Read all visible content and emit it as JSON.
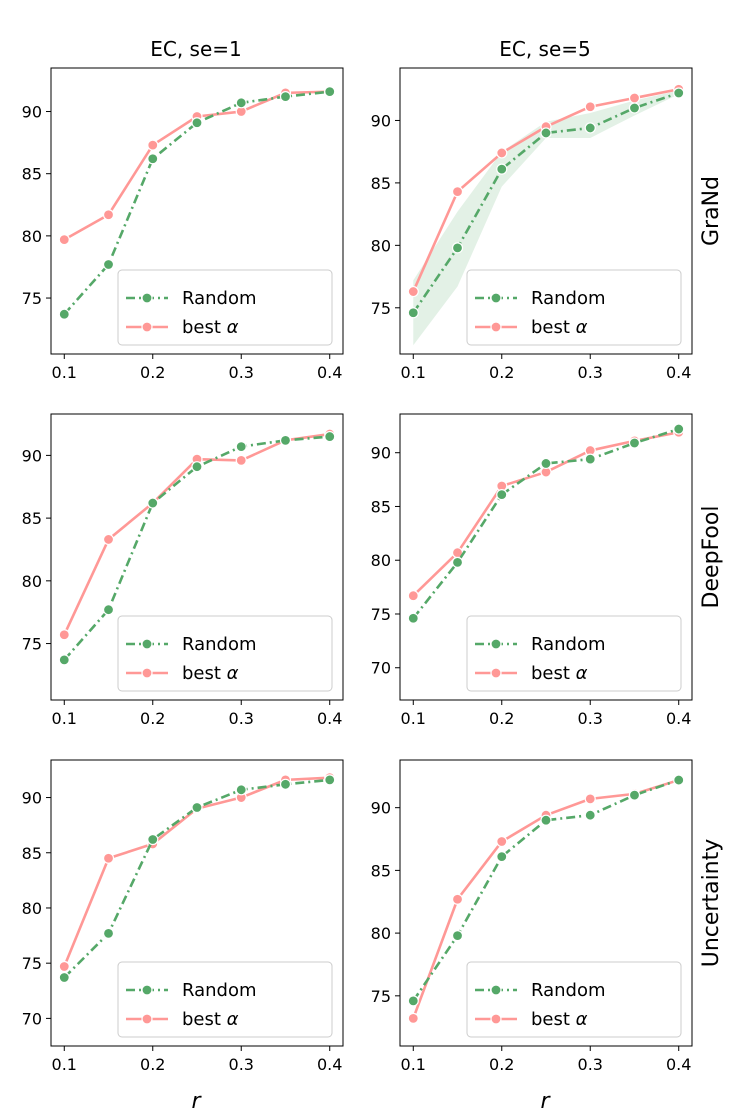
{
  "figure": {
    "column_titles": [
      "EC, se=1",
      "EC, se=5"
    ],
    "row_labels": [
      "GraNd",
      "DeepFool",
      "Uncertainty"
    ],
    "xlabel": "r"
  },
  "legend": {
    "random_label": "Random",
    "best_label_prefix": "best ",
    "best_label_symbol": "α"
  },
  "colors": {
    "random": "#55a868",
    "best": "#ff9896",
    "band": "#e3f1e6"
  },
  "chart_data": [
    {
      "type": "line",
      "row": 0,
      "col": 0,
      "legend": "lower-right",
      "x": [
        0.1,
        0.15,
        0.2,
        0.25,
        0.3,
        0.35,
        0.4
      ],
      "xlim": [
        0.085,
        0.415
      ],
      "ylim": [
        70.5,
        93.5
      ],
      "xticks": [
        0.1,
        0.2,
        0.3,
        0.4
      ],
      "xtick_labels": [
        "0.1",
        "0.2",
        "0.3",
        "0.4"
      ],
      "yticks": [
        75,
        80,
        85,
        90
      ],
      "ytick_labels": [
        "75",
        "80",
        "85",
        "90"
      ],
      "series": [
        {
          "name": "Random",
          "values": [
            73.7,
            77.7,
            86.2,
            89.1,
            90.7,
            91.2,
            91.6
          ]
        },
        {
          "name": "best α",
          "values": [
            79.7,
            81.7,
            87.3,
            89.6,
            90.0,
            91.5,
            91.6
          ]
        }
      ]
    },
    {
      "type": "line",
      "row": 0,
      "col": 1,
      "legend": "lower-right",
      "x": [
        0.1,
        0.15,
        0.2,
        0.25,
        0.3,
        0.35,
        0.4
      ],
      "xlim": [
        0.085,
        0.415
      ],
      "ylim": [
        71.3,
        94.2
      ],
      "xticks": [
        0.1,
        0.2,
        0.3,
        0.4
      ],
      "xtick_labels": [
        "0.1",
        "0.2",
        "0.3",
        "0.4"
      ],
      "yticks": [
        75,
        80,
        85,
        90
      ],
      "ytick_labels": [
        "75",
        "80",
        "85",
        "90"
      ],
      "band": {
        "lower": [
          72.0,
          76.7,
          84.7,
          88.6,
          88.6,
          90.4,
          92.1
        ],
        "upper": [
          77.2,
          82.7,
          87.5,
          89.9,
          90.6,
          91.6,
          92.4
        ]
      },
      "series": [
        {
          "name": "Random",
          "values": [
            74.6,
            79.8,
            86.1,
            89.0,
            89.4,
            91.0,
            92.2
          ]
        },
        {
          "name": "best α",
          "values": [
            76.3,
            84.3,
            87.4,
            89.5,
            91.1,
            91.8,
            92.5
          ]
        }
      ]
    },
    {
      "type": "line",
      "row": 1,
      "col": 0,
      "legend": "lower-right",
      "x": [
        0.1,
        0.15,
        0.2,
        0.25,
        0.3,
        0.35,
        0.4
      ],
      "xlim": [
        0.085,
        0.415
      ],
      "ylim": [
        70.5,
        93.3
      ],
      "xticks": [
        0.1,
        0.2,
        0.3,
        0.4
      ],
      "xtick_labels": [
        "0.1",
        "0.2",
        "0.3",
        "0.4"
      ],
      "yticks": [
        75,
        80,
        85,
        90
      ],
      "ytick_labels": [
        "75",
        "80",
        "85",
        "90"
      ],
      "series": [
        {
          "name": "Random",
          "values": [
            73.7,
            77.7,
            86.2,
            89.1,
            90.7,
            91.2,
            91.5
          ]
        },
        {
          "name": "best α",
          "values": [
            75.7,
            83.3,
            86.2,
            89.7,
            89.6,
            91.2,
            91.7
          ]
        }
      ]
    },
    {
      "type": "line",
      "row": 1,
      "col": 1,
      "legend": "lower-right",
      "x": [
        0.1,
        0.15,
        0.2,
        0.25,
        0.3,
        0.35,
        0.4
      ],
      "xlim": [
        0.085,
        0.415
      ],
      "ylim": [
        67.0,
        93.6
      ],
      "xticks": [
        0.1,
        0.2,
        0.3,
        0.4
      ],
      "xtick_labels": [
        "0.1",
        "0.2",
        "0.3",
        "0.4"
      ],
      "yticks": [
        70,
        75,
        80,
        85,
        90
      ],
      "ytick_labels": [
        "70",
        "75",
        "80",
        "85",
        "90"
      ],
      "series": [
        {
          "name": "Random",
          "values": [
            74.6,
            79.8,
            86.1,
            89.0,
            89.4,
            90.9,
            92.2
          ]
        },
        {
          "name": "best α",
          "values": [
            76.7,
            80.7,
            86.9,
            88.2,
            90.2,
            91.1,
            91.9
          ]
        }
      ]
    },
    {
      "type": "line",
      "row": 2,
      "col": 0,
      "legend": "lower-right",
      "x": [
        0.1,
        0.15,
        0.2,
        0.25,
        0.3,
        0.35,
        0.4
      ],
      "xlim": [
        0.085,
        0.415
      ],
      "ylim": [
        67.5,
        93.4
      ],
      "xticks": [
        0.1,
        0.2,
        0.3,
        0.4
      ],
      "xtick_labels": [
        "0.1",
        "0.2",
        "0.3",
        "0.4"
      ],
      "yticks": [
        70,
        75,
        80,
        85,
        90
      ],
      "ytick_labels": [
        "70",
        "75",
        "80",
        "85",
        "90"
      ],
      "series": [
        {
          "name": "Random",
          "values": [
            73.7,
            77.7,
            86.2,
            89.1,
            90.7,
            91.2,
            91.6
          ]
        },
        {
          "name": "best α",
          "values": [
            74.7,
            84.5,
            85.8,
            89.0,
            90.0,
            91.6,
            91.8
          ]
        }
      ]
    },
    {
      "type": "line",
      "row": 2,
      "col": 1,
      "legend": "lower-right",
      "x": [
        0.1,
        0.15,
        0.2,
        0.25,
        0.3,
        0.35,
        0.4
      ],
      "xlim": [
        0.085,
        0.415
      ],
      "ylim": [
        71.0,
        93.8
      ],
      "xticks": [
        0.1,
        0.2,
        0.3,
        0.4
      ],
      "xtick_labels": [
        "0.1",
        "0.2",
        "0.3",
        "0.4"
      ],
      "yticks": [
        75,
        80,
        85,
        90
      ],
      "ytick_labels": [
        "75",
        "80",
        "85",
        "90"
      ],
      "series": [
        {
          "name": "Random",
          "values": [
            74.6,
            79.8,
            86.1,
            89.0,
            89.4,
            91.0,
            92.2
          ]
        },
        {
          "name": "best α",
          "values": [
            73.2,
            82.7,
            87.3,
            89.4,
            90.7,
            91.1,
            92.2
          ]
        }
      ]
    }
  ]
}
